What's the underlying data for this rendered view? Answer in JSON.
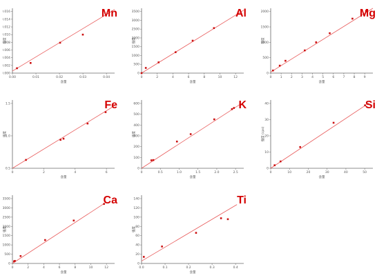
{
  "chart_data": [
    {
      "type": "scatter",
      "element": "Mn",
      "x_tick_labels": [
        "0.00",
        "0.01",
        "0.02",
        "0.03",
        "0.04"
      ],
      "y_tick_labels": [
        "0.000",
        "0.002",
        "0.004",
        "0.006",
        "0.008",
        "0.010",
        "0.012",
        "0.014",
        "0.016"
      ],
      "xlabel": "含量",
      "ylabel": "强度",
      "xlim": [
        0,
        0.045
      ],
      "ylim": [
        0,
        0.016
      ],
      "x": [
        0.002,
        0.008,
        0.021,
        0.031
      ],
      "y": [
        0.0012,
        0.0025,
        0.0075,
        0.0095
      ],
      "fit": [
        [
          0,
          0.0005
        ],
        [
          0.045,
          0.0157
        ]
      ]
    },
    {
      "type": "scatter",
      "element": "Al",
      "x_tick_labels": [
        "0",
        "2",
        "4",
        "6",
        "8",
        "10",
        "12"
      ],
      "y_tick_labels": [
        "0",
        "500",
        "1000",
        "1500",
        "2000",
        "2500",
        "3000",
        "3500"
      ],
      "xlabel": "含量",
      "ylabel": "强度",
      "xlim": [
        0,
        12
      ],
      "ylim": [
        0,
        3500
      ],
      "x": [
        0,
        0.5,
        2,
        4,
        6,
        8.5
      ],
      "y": [
        0,
        280,
        580,
        1130,
        1750,
        2430
      ],
      "fit": [
        [
          0,
          0
        ],
        [
          12,
          3400
        ]
      ]
    },
    {
      "type": "scatter",
      "element": "Mg",
      "x_tick_labels": [
        "0",
        "1",
        "2",
        "3",
        "4",
        "5",
        "6",
        "7",
        "8",
        "9"
      ],
      "y_tick_labels": [
        "0",
        "500",
        "1000",
        "1500",
        "2000"
      ],
      "xlabel": "含量",
      "ylabel": "强度",
      "xlim": [
        0,
        9
      ],
      "ylim": [
        0,
        2000
      ],
      "x": [
        0.2,
        0.8,
        1.3,
        3.0,
        4.0,
        5.2,
        7.2,
        8.4
      ],
      "y": [
        80,
        230,
        380,
        700,
        950,
        1230,
        1680,
        1920
      ],
      "fit": [
        [
          0,
          30
        ],
        [
          9,
          2000
        ]
      ]
    },
    {
      "type": "scatter",
      "element": "Fe",
      "x_tick_labels": [
        "0",
        "2",
        "4",
        "6"
      ],
      "y_tick_labels": [
        "0.5",
        "1.0",
        "1.5"
      ],
      "xlabel": "含量",
      "ylabel": "强度",
      "xlim": [
        0,
        6.8
      ],
      "ylim": [
        0,
        1.8
      ],
      "x": [
        0.9,
        3.2,
        3.4,
        5.0,
        6.2
      ],
      "y": [
        0.22,
        0.75,
        0.78,
        1.18,
        1.48
      ],
      "fit": [
        [
          0,
          0
        ],
        [
          6.8,
          1.65
        ]
      ]
    },
    {
      "type": "scatter",
      "element": "K",
      "x_tick_labels": [
        "0",
        "0.5",
        "1.0",
        "1.5",
        "2.0",
        "2.5"
      ],
      "y_tick_labels": [
        "0",
        "100",
        "200",
        "300",
        "400",
        "500",
        "600"
      ],
      "xlabel": "含量",
      "ylabel": "强度",
      "xlim": [
        0,
        2.6
      ],
      "ylim": [
        0,
        600
      ],
      "x": [
        0.25,
        0.3,
        0.9,
        1.25,
        1.85,
        2.3,
        2.35
      ],
      "y": [
        70,
        72,
        235,
        300,
        430,
        520,
        530
      ],
      "fit": [
        [
          0,
          0
        ],
        [
          2.5,
          560
        ]
      ]
    },
    {
      "type": "scatter",
      "element": "Si",
      "x_tick_labels": [
        "0",
        "10",
        "20",
        "30",
        "40",
        "50"
      ],
      "y_tick_labels": [
        "0",
        "10",
        "20",
        "30",
        "40"
      ],
      "xlabel": "含量",
      "ylabel": "强度 (cps)",
      "xlim": [
        0,
        52
      ],
      "ylim": [
        0,
        45
      ],
      "x": [
        2,
        5,
        15,
        32,
        48
      ],
      "y": [
        2,
        4.5,
        14,
        30,
        41.5
      ],
      "fit": [
        [
          0,
          0
        ],
        [
          50,
          43
        ]
      ]
    },
    {
      "type": "scatter",
      "element": "Ca",
      "x_tick_labels": [
        "0",
        "2",
        "4",
        "6",
        "8",
        "10",
        "12"
      ],
      "y_tick_labels": [
        "0",
        "500",
        "1000",
        "1500",
        "2000",
        "2500",
        "3000",
        "3500"
      ],
      "xlabel": "含量",
      "ylabel": "强度",
      "xlim": [
        0,
        12.5
      ],
      "ylim": [
        0,
        3500
      ],
      "x": [
        0.2,
        0.3,
        1.0,
        4.0,
        7.5,
        11.2
      ],
      "y": [
        110,
        130,
        380,
        1200,
        2200,
        3050
      ],
      "fit": [
        [
          0,
          0
        ],
        [
          11.5,
          3150
        ]
      ]
    },
    {
      "type": "scatter",
      "element": "Ti",
      "x_tick_labels": [
        "0.0",
        "0.1",
        "0.2",
        "0.3",
        "0.4"
      ],
      "y_tick_labels": [
        "0",
        "20",
        "40",
        "60",
        "80",
        "100",
        "120",
        "140"
      ],
      "xlabel": "含量",
      "ylabel": "强度",
      "xlim": [
        0,
        0.45
      ],
      "ylim": [
        0,
        145
      ],
      "x": [
        0.01,
        0.09,
        0.24,
        0.35,
        0.38
      ],
      "y": [
        14,
        36,
        65,
        96,
        94
      ],
      "fit": [
        [
          0,
          5
        ],
        [
          0.42,
          125
        ]
      ]
    }
  ]
}
